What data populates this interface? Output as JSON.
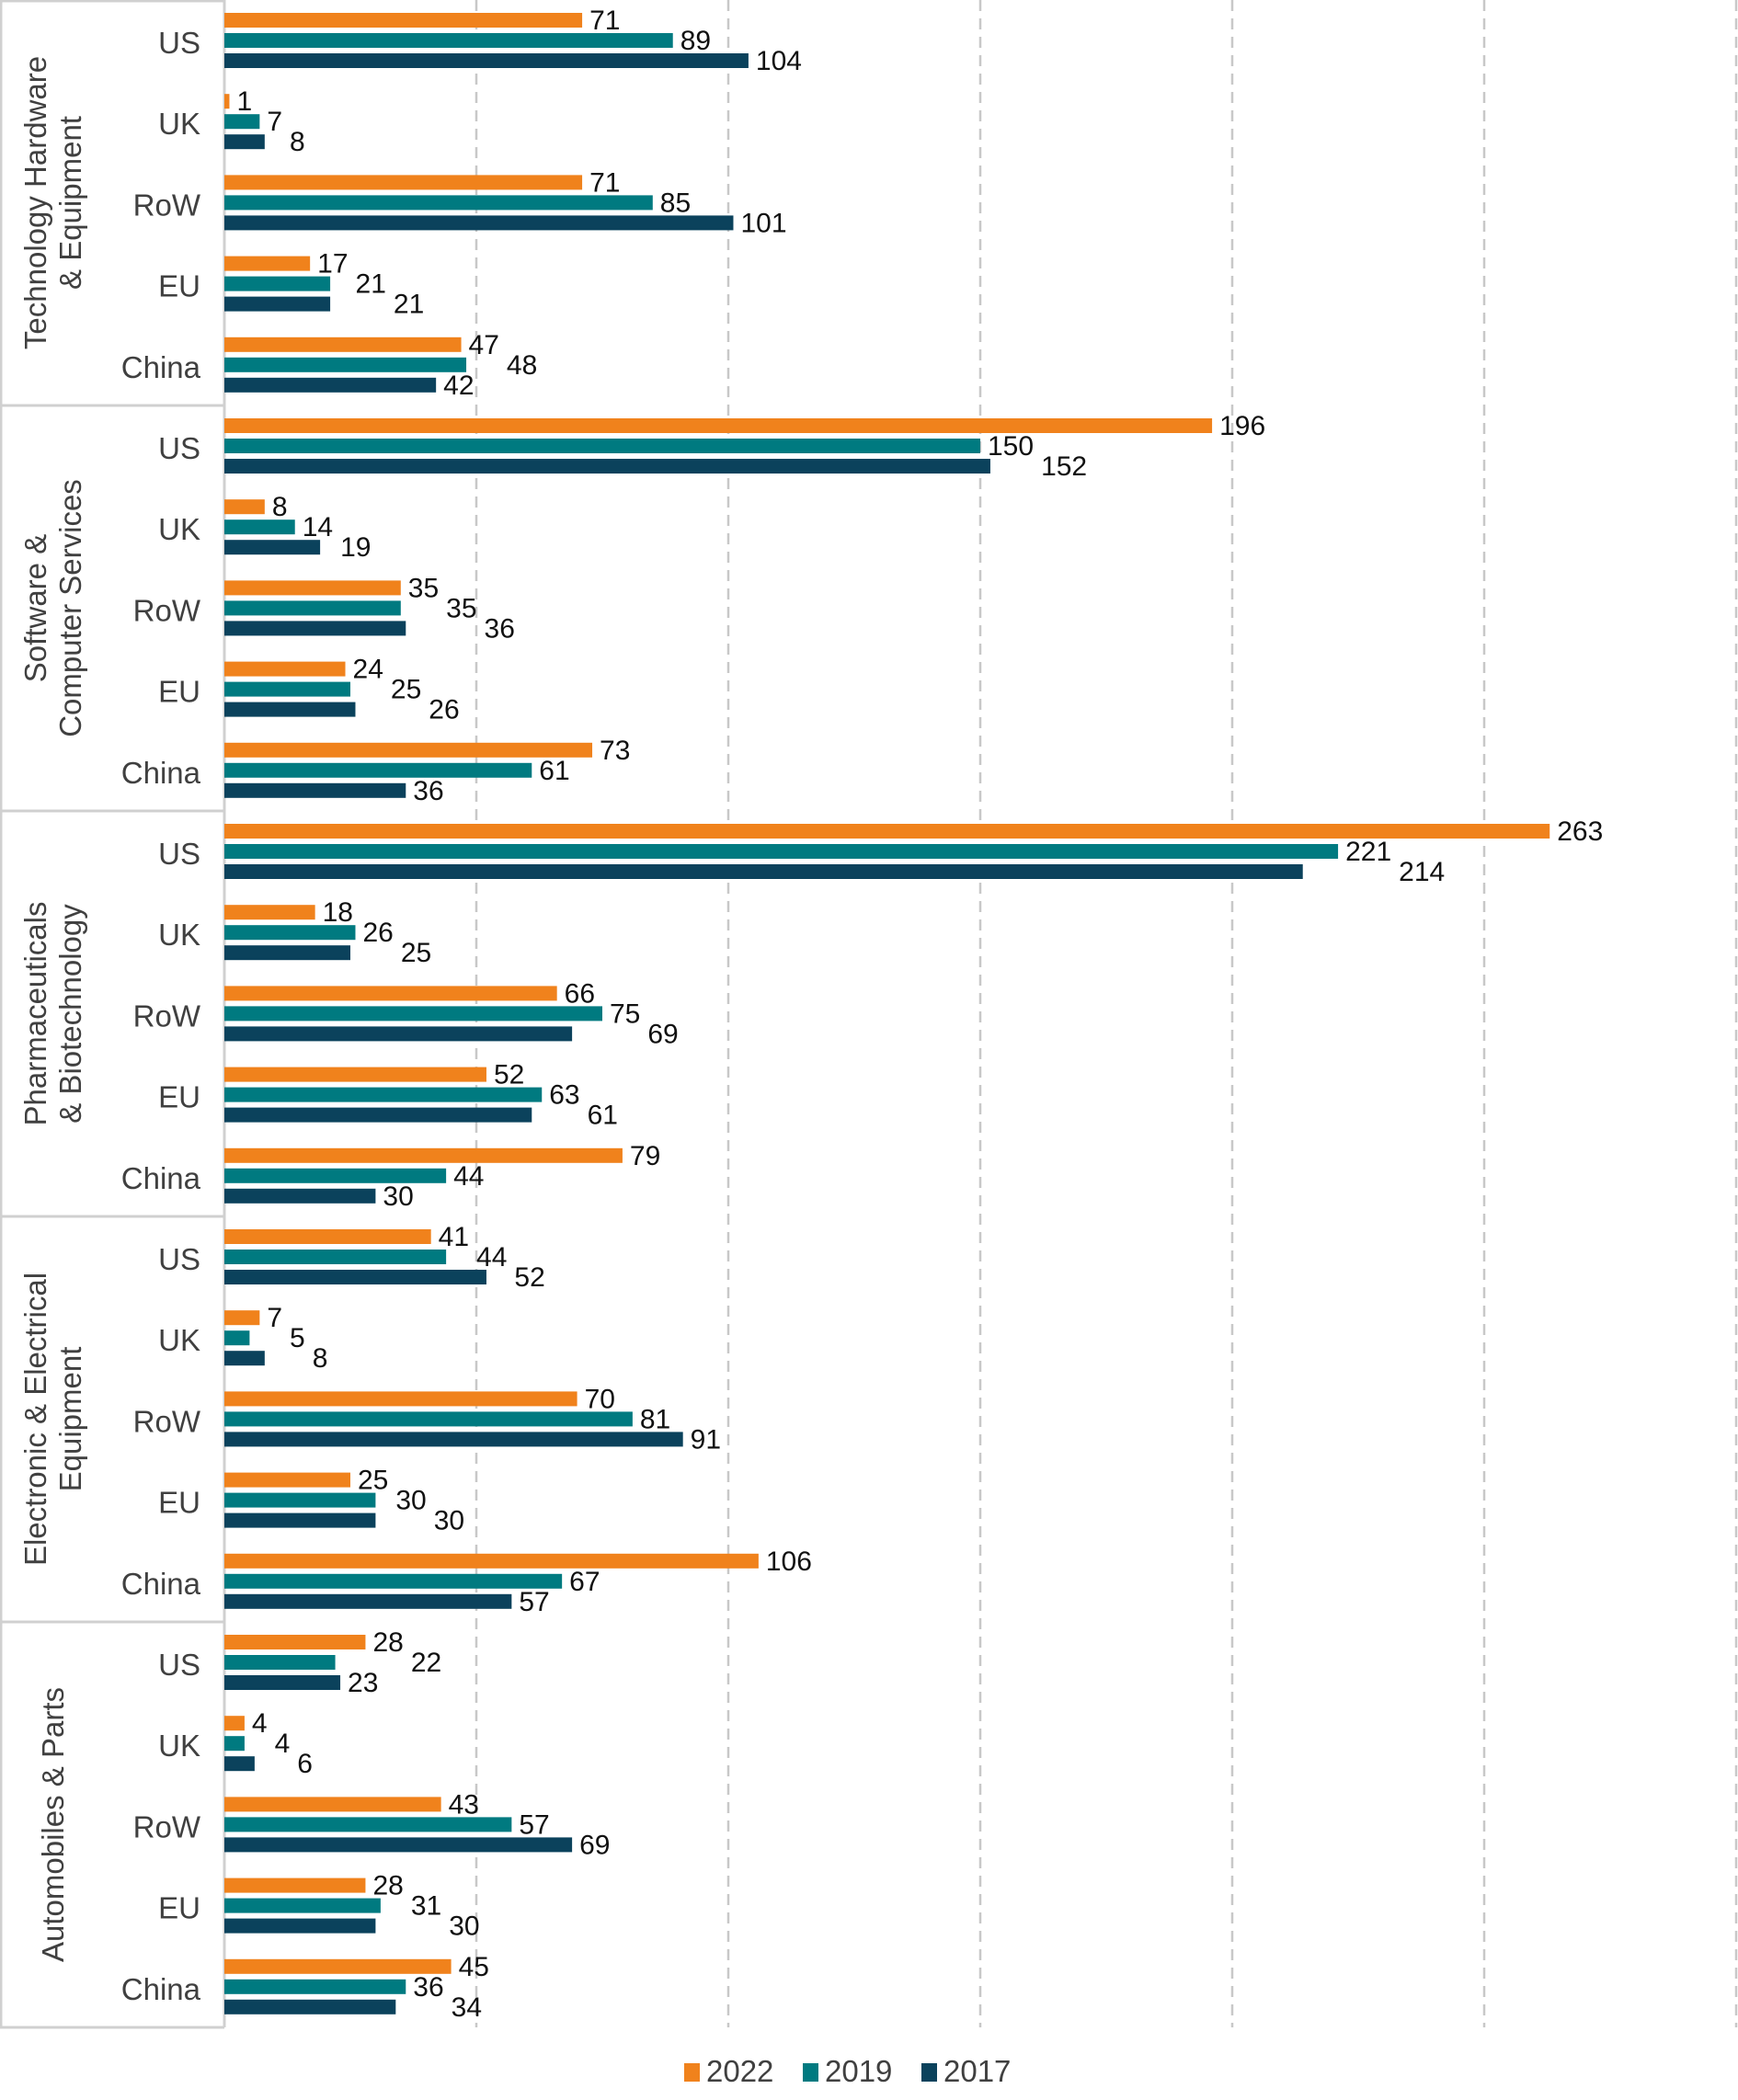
{
  "chart_data": {
    "type": "bar",
    "orientation": "horizontal",
    "title": "",
    "xlabel": "",
    "ylabel": "",
    "xlim": [
      0,
      300
    ],
    "grid": true,
    "legend_position": "bottom",
    "colors": {
      "2022": "#f0821c",
      "2019": "#007a80",
      "2017": "#0b425c"
    },
    "series_names": [
      "2022",
      "2019",
      "2017"
    ],
    "groups": [
      {
        "label": [
          "Technology Hardware",
          "& Equipment"
        ],
        "categories": [
          "US",
          "UK",
          "RoW",
          "EU",
          "China"
        ],
        "series": [
          {
            "name": "2022",
            "values": [
              71,
              1,
              71,
              17,
              47
            ]
          },
          {
            "name": "2019",
            "values": [
              89,
              7,
              85,
              21,
              48
            ]
          },
          {
            "name": "2017",
            "values": [
              104,
              8,
              101,
              21,
              42
            ]
          }
        ]
      },
      {
        "label": [
          "Software &",
          "Computer Services"
        ],
        "categories": [
          "US",
          "UK",
          "RoW",
          "EU",
          "China"
        ],
        "series": [
          {
            "name": "2022",
            "values": [
              196,
              8,
              35,
              24,
              73
            ]
          },
          {
            "name": "2019",
            "values": [
              150,
              14,
              35,
              25,
              61
            ]
          },
          {
            "name": "2017",
            "values": [
              152,
              19,
              36,
              26,
              36
            ]
          }
        ]
      },
      {
        "label": [
          "Pharmaceuticals",
          "& Biotechnology"
        ],
        "categories": [
          "US",
          "UK",
          "RoW",
          "EU",
          "China"
        ],
        "series": [
          {
            "name": "2022",
            "values": [
              263,
              18,
              66,
              52,
              79
            ]
          },
          {
            "name": "2019",
            "values": [
              221,
              26,
              75,
              63,
              44
            ]
          },
          {
            "name": "2017",
            "values": [
              214,
              25,
              69,
              61,
              30
            ]
          }
        ]
      },
      {
        "label": [
          "Electronic & Electrical",
          "Equipment"
        ],
        "categories": [
          "US",
          "UK",
          "RoW",
          "EU",
          "China"
        ],
        "series": [
          {
            "name": "2022",
            "values": [
              41,
              7,
              70,
              25,
              106
            ]
          },
          {
            "name": "2019",
            "values": [
              44,
              5,
              81,
              30,
              67
            ]
          },
          {
            "name": "2017",
            "values": [
              52,
              8,
              91,
              30,
              57
            ]
          }
        ]
      },
      {
        "label": [
          "Automobiles & Parts"
        ],
        "categories": [
          "US",
          "UK",
          "RoW",
          "EU",
          "China"
        ],
        "series": [
          {
            "name": "2022",
            "values": [
              28,
              4,
              43,
              28,
              45
            ]
          },
          {
            "name": "2019",
            "values": [
              22,
              4,
              57,
              31,
              36
            ]
          },
          {
            "name": "2017",
            "values": [
              23,
              6,
              69,
              30,
              34
            ]
          }
        ]
      }
    ]
  }
}
